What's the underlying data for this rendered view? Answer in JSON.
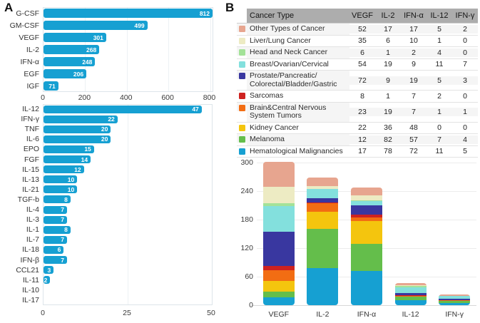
{
  "panels": {
    "a_label": "A",
    "b_label": "B"
  },
  "colors": {
    "bar_blue": "#16A0D2",
    "plot_border": "#dde5ea",
    "table_header_bg": "#ADADAD"
  },
  "table": {
    "headers": [
      "Cancer Type",
      "VEGF",
      "IL-2",
      "IFN-α",
      "IL-12",
      "IFN-γ"
    ],
    "rows": [
      {
        "name": "Other Types of Cancer",
        "color": "#E7A58F",
        "values": [
          52,
          17,
          17,
          5,
          2
        ]
      },
      {
        "name": "Liver/Lung Cancer",
        "color": "#EDEBC3",
        "values": [
          35,
          6,
          10,
          1,
          0
        ]
      },
      {
        "name": "Head and Neck Cancer",
        "color": "#A3E298",
        "values": [
          6,
          1,
          2,
          4,
          0
        ]
      },
      {
        "name": "Breast/Ovarian/Cervical",
        "color": "#83E0DD",
        "values": [
          54,
          19,
          9,
          11,
          7
        ]
      },
      {
        "name": "Prostate/Pancreatic/\nColorectal/Bladder/Gastric",
        "color": "#3937A0",
        "values": [
          72,
          9,
          19,
          5,
          3
        ]
      },
      {
        "name": "Sarcomas",
        "color": "#CE2220",
        "values": [
          8,
          1,
          7,
          2,
          0
        ]
      },
      {
        "name": "Brain&Central Nervous\nSystem Tumors",
        "color": "#F26D13",
        "values": [
          23,
          19,
          7,
          1,
          1
        ]
      },
      {
        "name": "Kidney Cancer",
        "color": "#F4C50E",
        "values": [
          22,
          36,
          48,
          0,
          0
        ]
      },
      {
        "name": "Melanoma",
        "color": "#64BE4B",
        "values": [
          12,
          82,
          57,
          7,
          4
        ]
      },
      {
        "name": "Hematological Malignancies",
        "color": "#16A0D2",
        "values": [
          17,
          78,
          72,
          11,
          5
        ]
      }
    ]
  },
  "chart_data": [
    {
      "id": "cytokines-top",
      "type": "bar",
      "orientation": "horizontal",
      "title": "",
      "xlabel": "",
      "ylabel": "",
      "categories": [
        "G-CSF",
        "GM-CSF",
        "VEGF",
        "IL-2",
        "IFN-α",
        "EGF",
        "IGF"
      ],
      "values": [
        812,
        499,
        301,
        268,
        248,
        206,
        71
      ],
      "xlim": [
        0,
        812
      ],
      "xticks": [
        0,
        200,
        400,
        600,
        800
      ],
      "bar_color": "#16A0D2",
      "grid": "vertical-faint",
      "value_labels": "white-inside-right"
    },
    {
      "id": "cytokines-bottom",
      "type": "bar",
      "orientation": "horizontal",
      "title": "",
      "xlabel": "",
      "ylabel": "",
      "categories": [
        "IL-12",
        "IFN-γ",
        "TNF",
        "IL-6",
        "EPO",
        "FGF",
        "IL-15",
        "IL-13",
        "IL-21",
        "TGF-b",
        "IL-4",
        "IL-3",
        "IL-1",
        "IL-7",
        "IL-18",
        "IFN-β",
        "CCL21",
        "IL-11",
        "IL-10",
        "IL-17"
      ],
      "values": [
        47,
        22,
        20,
        20,
        15,
        14,
        12,
        10,
        10,
        8,
        7,
        7,
        8,
        7,
        6,
        7,
        3,
        2,
        null,
        null
      ],
      "xlim": [
        0,
        50
      ],
      "xticks": [
        0,
        25,
        50
      ],
      "bar_color": "#16A0D2",
      "grid": "vertical-faint",
      "value_labels": "white-inside-right"
    },
    {
      "id": "cancer-by-cytokine",
      "type": "bar",
      "subtype": "stacked",
      "title": "",
      "xlabel": "",
      "ylabel": "",
      "categories": [
        "VEGF",
        "IL-2",
        "IFN-α",
        "IL-12",
        "IFN-γ"
      ],
      "series": [
        {
          "name": "Other Types of Cancer",
          "color": "#E7A58F",
          "values": [
            52,
            17,
            17,
            5,
            2
          ]
        },
        {
          "name": "Liver/Lung Cancer",
          "color": "#EDEBC3",
          "values": [
            35,
            6,
            10,
            1,
            0
          ]
        },
        {
          "name": "Head and Neck Cancer",
          "color": "#A3E298",
          "values": [
            6,
            1,
            2,
            4,
            0
          ]
        },
        {
          "name": "Breast/Ovarian/Cervical",
          "color": "#83E0DD",
          "values": [
            54,
            19,
            9,
            11,
            7
          ]
        },
        {
          "name": "Prostate/Pancreatic/Colorectal/Bladder/Gastric",
          "color": "#3937A0",
          "values": [
            72,
            9,
            19,
            5,
            3
          ]
        },
        {
          "name": "Sarcomas",
          "color": "#CE2220",
          "values": [
            8,
            1,
            7,
            2,
            0
          ]
        },
        {
          "name": "Brain&Central Nervous System Tumors",
          "color": "#F26D13",
          "values": [
            23,
            19,
            7,
            1,
            1
          ]
        },
        {
          "name": "Kidney Cancer",
          "color": "#F4C50E",
          "values": [
            22,
            36,
            48,
            0,
            0
          ]
        },
        {
          "name": "Melanoma",
          "color": "#64BE4B",
          "values": [
            12,
            82,
            57,
            7,
            4
          ]
        },
        {
          "name": "Hematological Malignancies",
          "color": "#16A0D2",
          "values": [
            17,
            78,
            72,
            11,
            5
          ]
        }
      ],
      "stacking_note": "first listed series is at top of stack; last listed (Hematological Malignancies) at bottom",
      "ylim": [
        0,
        300
      ],
      "yticks": [
        0,
        60,
        120,
        180,
        240,
        300
      ],
      "grid": "horizontal",
      "legend": "table-swatches"
    }
  ]
}
